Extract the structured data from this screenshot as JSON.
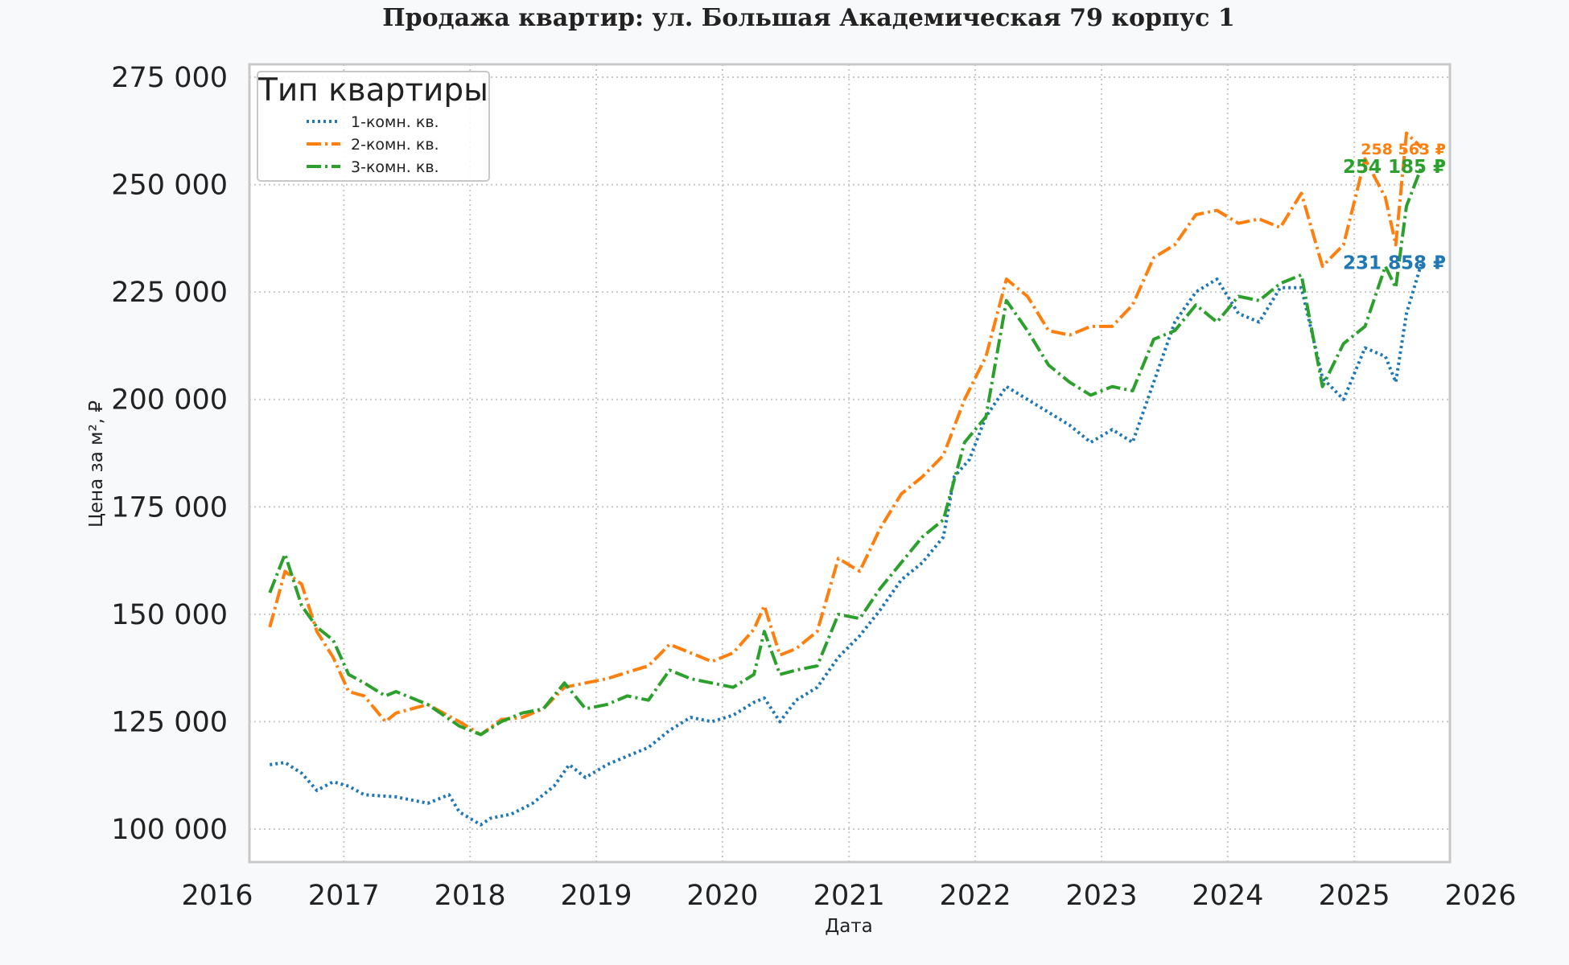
{
  "chart_data": {
    "type": "line",
    "title": "Продажа квартир: ул. Большая Академическая 79 корпус 1",
    "xlabel": "Дата",
    "ylabel": "Цена за м², ₽",
    "x_range": [
      "2016-01-01",
      "2026-01-01"
    ],
    "ylim": [
      92000,
      277500
    ],
    "x_ticks": [
      "2016",
      "2017",
      "2018",
      "2019",
      "2020",
      "2021",
      "2022",
      "2023",
      "2024",
      "2025",
      "2026"
    ],
    "y_ticks": [
      100000,
      125000,
      150000,
      175000,
      200000,
      225000,
      250000,
      275000
    ],
    "y_tick_labels": [
      "100 000",
      "125 000",
      "150 000",
      "175 000",
      "200 000",
      "225 000",
      "250 000",
      "275 000"
    ],
    "grid": true,
    "legend": {
      "title": "Тип квартиры",
      "position": "top-left"
    },
    "series": [
      {
        "name": "1-комн. кв.",
        "color": "#1f77b4",
        "line_style": "dotted",
        "end_label": "231 858 ₽",
        "points": [
          [
            "2016-06-01",
            115000
          ],
          [
            "2016-07-15",
            115500
          ],
          [
            "2016-09-01",
            113000
          ],
          [
            "2016-10-15",
            109000
          ],
          [
            "2016-12-01",
            111000
          ],
          [
            "2017-01-15",
            110000
          ],
          [
            "2017-03-01",
            108000
          ],
          [
            "2017-06-01",
            107500
          ],
          [
            "2017-09-01",
            106000
          ],
          [
            "2017-11-01",
            108000
          ],
          [
            "2017-12-01",
            104000
          ],
          [
            "2018-02-01",
            101000
          ],
          [
            "2018-03-01",
            102500
          ],
          [
            "2018-05-01",
            103500
          ],
          [
            "2018-07-01",
            106000
          ],
          [
            "2018-09-01",
            110000
          ],
          [
            "2018-10-15",
            115000
          ],
          [
            "2018-12-01",
            112000
          ],
          [
            "2019-02-01",
            115000
          ],
          [
            "2019-04-01",
            117000
          ],
          [
            "2019-06-01",
            119000
          ],
          [
            "2019-08-01",
            123000
          ],
          [
            "2019-10-01",
            126000
          ],
          [
            "2019-12-01",
            125000
          ],
          [
            "2020-02-01",
            126500
          ],
          [
            "2020-04-01",
            129500
          ],
          [
            "2020-05-01",
            130500
          ],
          [
            "2020-06-15",
            125000
          ],
          [
            "2020-08-01",
            130000
          ],
          [
            "2020-10-01",
            133000
          ],
          [
            "2020-12-01",
            140000
          ],
          [
            "2021-02-01",
            145000
          ],
          [
            "2021-04-01",
            151000
          ],
          [
            "2021-06-01",
            158000
          ],
          [
            "2021-08-01",
            162000
          ],
          [
            "2021-10-01",
            168000
          ],
          [
            "2021-11-01",
            182000
          ],
          [
            "2021-12-15",
            186000
          ],
          [
            "2022-02-01",
            196000
          ],
          [
            "2022-04-01",
            203000
          ],
          [
            "2022-06-01",
            200000
          ],
          [
            "2022-08-01",
            197000
          ],
          [
            "2022-10-01",
            194000
          ],
          [
            "2022-12-01",
            190000
          ],
          [
            "2023-02-01",
            193000
          ],
          [
            "2023-04-01",
            190000
          ],
          [
            "2023-06-01",
            204000
          ],
          [
            "2023-08-01",
            218000
          ],
          [
            "2023-10-01",
            225000
          ],
          [
            "2023-12-01",
            228000
          ],
          [
            "2024-02-01",
            220000
          ],
          [
            "2024-04-01",
            218000
          ],
          [
            "2024-06-01",
            226000
          ],
          [
            "2024-08-01",
            226000
          ],
          [
            "2024-10-01",
            205000
          ],
          [
            "2024-12-01",
            200000
          ],
          [
            "2025-02-01",
            212000
          ],
          [
            "2025-04-01",
            210000
          ],
          [
            "2025-05-01",
            204000
          ],
          [
            "2025-06-01",
            220000
          ],
          [
            "2025-07-15",
            231858
          ]
        ]
      },
      {
        "name": "2-комн. кв.",
        "color": "#ff7f0e",
        "line_style": "dashdot",
        "end_label": "258 563 ₽",
        "points": [
          [
            "2016-06-01",
            147000
          ],
          [
            "2016-07-15",
            160000
          ],
          [
            "2016-09-01",
            157000
          ],
          [
            "2016-10-15",
            146000
          ],
          [
            "2016-12-01",
            140000
          ],
          [
            "2017-01-15",
            132000
          ],
          [
            "2017-03-01",
            131000
          ],
          [
            "2017-05-01",
            125000
          ],
          [
            "2017-06-01",
            127000
          ],
          [
            "2017-09-01",
            129000
          ],
          [
            "2017-12-01",
            125000
          ],
          [
            "2018-02-01",
            122000
          ],
          [
            "2018-04-01",
            125500
          ],
          [
            "2018-06-01",
            126000
          ],
          [
            "2018-08-01",
            128000
          ],
          [
            "2018-10-01",
            133000
          ],
          [
            "2018-12-01",
            134000
          ],
          [
            "2019-02-01",
            135000
          ],
          [
            "2019-04-01",
            136500
          ],
          [
            "2019-06-01",
            138000
          ],
          [
            "2019-08-01",
            143000
          ],
          [
            "2019-10-01",
            141000
          ],
          [
            "2019-12-01",
            139000
          ],
          [
            "2020-02-01",
            141000
          ],
          [
            "2020-04-01",
            146500
          ],
          [
            "2020-05-01",
            152000
          ],
          [
            "2020-06-15",
            140500
          ],
          [
            "2020-08-01",
            142000
          ],
          [
            "2020-10-01",
            146000
          ],
          [
            "2020-12-01",
            163000
          ],
          [
            "2021-02-01",
            160000
          ],
          [
            "2021-04-01",
            170000
          ],
          [
            "2021-06-01",
            178000
          ],
          [
            "2021-08-01",
            182000
          ],
          [
            "2021-10-01",
            187000
          ],
          [
            "2021-12-01",
            200000
          ],
          [
            "2022-02-01",
            210000
          ],
          [
            "2022-04-01",
            228000
          ],
          [
            "2022-06-01",
            224000
          ],
          [
            "2022-08-01",
            216000
          ],
          [
            "2022-10-01",
            215000
          ],
          [
            "2022-12-01",
            217000
          ],
          [
            "2023-02-01",
            217000
          ],
          [
            "2023-04-01",
            222000
          ],
          [
            "2023-06-01",
            233000
          ],
          [
            "2023-08-01",
            236000
          ],
          [
            "2023-10-01",
            243000
          ],
          [
            "2023-12-01",
            244000
          ],
          [
            "2024-02-01",
            241000
          ],
          [
            "2024-04-01",
            242000
          ],
          [
            "2024-06-01",
            240000
          ],
          [
            "2024-08-01",
            248000
          ],
          [
            "2024-10-01",
            231000
          ],
          [
            "2024-12-01",
            236000
          ],
          [
            "2025-02-01",
            256000
          ],
          [
            "2025-04-01",
            247000
          ],
          [
            "2025-05-01",
            236000
          ],
          [
            "2025-06-01",
            262000
          ],
          [
            "2025-07-15",
            258563
          ]
        ]
      },
      {
        "name": "3-комн. кв.",
        "color": "#2ca02c",
        "line_style": "dashdot",
        "end_label": "254 185 ₽",
        "points": [
          [
            "2016-06-01",
            155000
          ],
          [
            "2016-07-15",
            164000
          ],
          [
            "2016-09-01",
            152000
          ],
          [
            "2016-10-15",
            147000
          ],
          [
            "2016-12-01",
            144000
          ],
          [
            "2017-01-15",
            136000
          ],
          [
            "2017-03-01",
            134000
          ],
          [
            "2017-05-01",
            131000
          ],
          [
            "2017-06-01",
            132000
          ],
          [
            "2017-09-01",
            129000
          ],
          [
            "2017-12-01",
            124000
          ],
          [
            "2018-02-01",
            122000
          ],
          [
            "2018-04-01",
            125000
          ],
          [
            "2018-06-01",
            127000
          ],
          [
            "2018-08-01",
            128000
          ],
          [
            "2018-10-01",
            134000
          ],
          [
            "2018-12-01",
            128000
          ],
          [
            "2019-02-01",
            129000
          ],
          [
            "2019-04-01",
            131000
          ],
          [
            "2019-06-01",
            130000
          ],
          [
            "2019-08-01",
            137000
          ],
          [
            "2019-10-01",
            135000
          ],
          [
            "2019-12-01",
            134000
          ],
          [
            "2020-02-01",
            133000
          ],
          [
            "2020-04-01",
            136000
          ],
          [
            "2020-05-01",
            146000
          ],
          [
            "2020-06-15",
            136000
          ],
          [
            "2020-08-01",
            137000
          ],
          [
            "2020-10-01",
            138000
          ],
          [
            "2020-12-01",
            150000
          ],
          [
            "2021-02-01",
            149000
          ],
          [
            "2021-04-01",
            156000
          ],
          [
            "2021-06-01",
            162000
          ],
          [
            "2021-08-01",
            168000
          ],
          [
            "2021-10-01",
            172000
          ],
          [
            "2021-12-01",
            190000
          ],
          [
            "2022-02-01",
            196000
          ],
          [
            "2022-04-01",
            223000
          ],
          [
            "2022-06-01",
            216000
          ],
          [
            "2022-08-01",
            208000
          ],
          [
            "2022-10-01",
            204000
          ],
          [
            "2022-12-01",
            201000
          ],
          [
            "2023-02-01",
            203000
          ],
          [
            "2023-04-01",
            202000
          ],
          [
            "2023-06-01",
            214000
          ],
          [
            "2023-08-01",
            216000
          ],
          [
            "2023-10-01",
            222000
          ],
          [
            "2023-12-01",
            218000
          ],
          [
            "2024-02-01",
            224000
          ],
          [
            "2024-04-01",
            223000
          ],
          [
            "2024-06-01",
            227000
          ],
          [
            "2024-08-01",
            229000
          ],
          [
            "2024-10-01",
            203000
          ],
          [
            "2024-12-01",
            213000
          ],
          [
            "2025-02-01",
            217000
          ],
          [
            "2025-04-01",
            231000
          ],
          [
            "2025-05-01",
            226000
          ],
          [
            "2025-06-01",
            245000
          ],
          [
            "2025-07-15",
            254185
          ]
        ]
      }
    ]
  }
}
